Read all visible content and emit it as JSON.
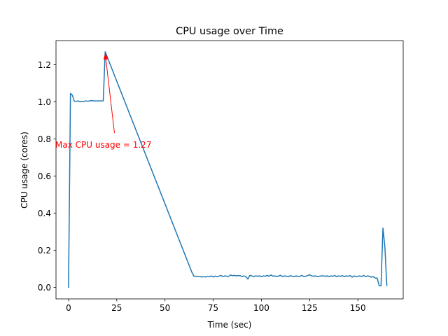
{
  "chart_data": {
    "type": "line",
    "title": "CPU usage over Time",
    "xlabel": "Time (sec)",
    "ylabel": "CPU usage (cores)",
    "xlim": [
      -6.5,
      173.5
    ],
    "ylim": [
      -0.062,
      1.33
    ],
    "xticks": [
      0,
      25,
      50,
      75,
      100,
      125,
      150
    ],
    "yticks": [
      0.0,
      0.2,
      0.4,
      0.6,
      0.8,
      1.0,
      1.2
    ],
    "xtick_labels": [
      "0",
      "25",
      "50",
      "75",
      "100",
      "125",
      "150"
    ],
    "ytick_labels": [
      "0.0",
      "0.2",
      "0.4",
      "0.6",
      "0.8",
      "1.0",
      "1.2"
    ],
    "grid": false,
    "legend": "none",
    "line_color": "#1f77b4",
    "annotation_color": "#ff0000",
    "series": [
      {
        "x": [
          0,
          1,
          2,
          3,
          4,
          5,
          6,
          7,
          8,
          9,
          10,
          11,
          12,
          13,
          14,
          15,
          16,
          17,
          18,
          19,
          64,
          65,
          66,
          67,
          68,
          69,
          70,
          71,
          72,
          73,
          74,
          75,
          76,
          77,
          78,
          79,
          80,
          81,
          82,
          83,
          84,
          85,
          86,
          87,
          88,
          89,
          90,
          91,
          92,
          93,
          94,
          95,
          96,
          97,
          98,
          99,
          100,
          101,
          102,
          103,
          104,
          105,
          106,
          107,
          108,
          109,
          110,
          111,
          112,
          113,
          114,
          115,
          116,
          117,
          118,
          119,
          120,
          121,
          122,
          123,
          124,
          125,
          126,
          127,
          128,
          129,
          130,
          131,
          132,
          133,
          134,
          135,
          136,
          137,
          138,
          139,
          140,
          141,
          142,
          143,
          144,
          145,
          146,
          147,
          148,
          149,
          150,
          151,
          152,
          153,
          154,
          155,
          156,
          157,
          158,
          159,
          160,
          161,
          162,
          163,
          164,
          165
        ],
        "y": [
          0.0,
          1.045,
          1.035,
          1.003,
          1.003,
          1.005,
          1.0,
          1.002,
          1.002,
          1.005,
          1.003,
          1.005,
          1.007,
          1.005,
          1.005,
          1.005,
          1.005,
          1.005,
          1.005,
          1.27,
          0.08,
          0.06,
          0.06,
          0.058,
          0.059,
          0.056,
          0.058,
          0.056,
          0.06,
          0.057,
          0.062,
          0.056,
          0.061,
          0.057,
          0.06,
          0.065,
          0.058,
          0.062,
          0.06,
          0.059,
          0.067,
          0.063,
          0.065,
          0.062,
          0.064,
          0.063,
          0.058,
          0.062,
          0.057,
          0.045,
          0.065,
          0.062,
          0.058,
          0.062,
          0.06,
          0.062,
          0.058,
          0.062,
          0.06,
          0.065,
          0.06,
          0.067,
          0.06,
          0.062,
          0.058,
          0.062,
          0.065,
          0.058,
          0.062,
          0.06,
          0.058,
          0.063,
          0.06,
          0.058,
          0.062,
          0.058,
          0.06,
          0.065,
          0.058,
          0.06,
          0.064,
          0.068,
          0.062,
          0.06,
          0.062,
          0.058,
          0.06,
          0.062,
          0.062,
          0.06,
          0.062,
          0.058,
          0.062,
          0.06,
          0.064,
          0.058,
          0.062,
          0.06,
          0.063,
          0.058,
          0.062,
          0.06,
          0.064,
          0.055,
          0.062,
          0.058,
          0.06,
          0.062,
          0.058,
          0.065,
          0.058,
          0.062,
          0.06,
          0.055,
          0.058,
          0.05,
          0.05,
          0.01,
          0.008,
          0.32,
          0.22,
          0.01
        ]
      }
    ],
    "annotation": {
      "text": "Max CPU usage = 1.27",
      "point": [
        19,
        1.27
      ],
      "text_pos": [
        -6.5,
        0.77
      ]
    }
  }
}
